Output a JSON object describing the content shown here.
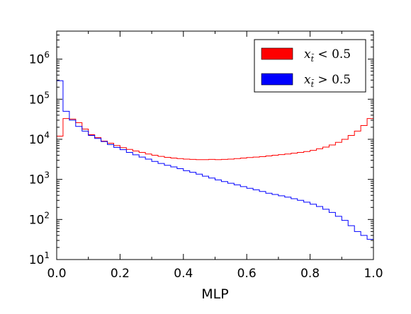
{
  "chart_data": {
    "type": "histogram-step",
    "title": "",
    "xlabel": "MLP",
    "ylabel": "",
    "xlim": [
      0.0,
      1.0
    ],
    "ylim": [
      10,
      5000000
    ],
    "yscale": "log",
    "grid": false,
    "legend_placement": "top-right",
    "x_tick_labels": [
      "0.0",
      "0.2",
      "0.4",
      "0.6",
      "0.8",
      "1.0"
    ],
    "y_tick_labels": [
      {
        "base": "10",
        "exp": "1"
      },
      {
        "base": "10",
        "exp": "2"
      },
      {
        "base": "10",
        "exp": "3"
      },
      {
        "base": "10",
        "exp": "4"
      },
      {
        "base": "10",
        "exp": "5"
      },
      {
        "base": "10",
        "exp": "6"
      }
    ],
    "bin_edges": [
      0.0,
      0.02,
      0.04,
      0.06,
      0.08,
      0.1,
      0.12,
      0.14,
      0.16,
      0.18,
      0.2,
      0.22,
      0.24,
      0.26,
      0.28,
      0.3,
      0.32,
      0.34,
      0.36,
      0.38,
      0.4,
      0.42,
      0.44,
      0.46,
      0.48,
      0.5,
      0.52,
      0.54,
      0.56,
      0.58,
      0.6,
      0.62,
      0.64,
      0.66,
      0.68,
      0.7,
      0.72,
      0.74,
      0.76,
      0.78,
      0.8,
      0.82,
      0.84,
      0.86,
      0.88,
      0.9,
      0.92,
      0.94,
      0.96,
      0.98,
      1.0
    ],
    "series": [
      {
        "name_base": "x",
        "name_sub": "t̄",
        "name_rel": " < 0.5",
        "color": "#ff0000",
        "values": [
          12000,
          33000,
          32000,
          26000,
          18000,
          13000,
          11000,
          9000,
          8000,
          7000,
          6200,
          5600,
          5100,
          4700,
          4300,
          4000,
          3750,
          3550,
          3400,
          3300,
          3200,
          3150,
          3100,
          3100,
          3150,
          3100,
          3150,
          3200,
          3300,
          3400,
          3500,
          3600,
          3700,
          3850,
          4000,
          4150,
          4300,
          4500,
          4700,
          4950,
          5300,
          5800,
          6400,
          7200,
          8400,
          10000,
          12500,
          16000,
          22000,
          33000,
          85000
        ]
      },
      {
        "name_base": "x",
        "name_sub": "t̄",
        "name_rel": " > 0.5",
        "color": "#0000ff",
        "values": [
          290000,
          50000,
          30000,
          21000,
          16000,
          12500,
          10500,
          8800,
          7400,
          6300,
          5500,
          4700,
          4100,
          3600,
          3200,
          2800,
          2500,
          2250,
          2050,
          1850,
          1650,
          1500,
          1350,
          1200,
          1080,
          970,
          880,
          800,
          730,
          660,
          600,
          550,
          500,
          450,
          420,
          390,
          360,
          330,
          300,
          270,
          240,
          210,
          180,
          150,
          120,
          95,
          70,
          50,
          40,
          32,
          50
        ]
      }
    ]
  }
}
